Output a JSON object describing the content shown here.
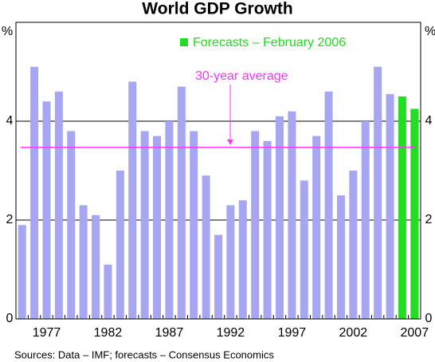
{
  "chart_data": {
    "type": "bar",
    "title": "World GDP Growth",
    "y_unit": "%",
    "categories": [
      null,
      null,
      "1977",
      null,
      null,
      null,
      null,
      "1982",
      null,
      null,
      null,
      null,
      "1987",
      null,
      null,
      null,
      null,
      "1992",
      null,
      null,
      null,
      null,
      "1997",
      null,
      null,
      null,
      null,
      "2002",
      null,
      null,
      null,
      null,
      "2007"
    ],
    "values": [
      1.9,
      5.1,
      4.4,
      4.6,
      3.8,
      2.3,
      2.1,
      1.1,
      3.0,
      4.8,
      3.8,
      3.7,
      4.0,
      4.7,
      3.8,
      2.9,
      1.7,
      2.3,
      2.4,
      3.8,
      3.6,
      4.1,
      4.2,
      2.8,
      3.7,
      4.6,
      2.5,
      3.0,
      4.0,
      5.1,
      4.55,
      4.5,
      4.25
    ],
    "colors": [
      "#a6a6f2",
      "#a6a6f2",
      "#a6a6f2",
      "#a6a6f2",
      "#a6a6f2",
      "#a6a6f2",
      "#a6a6f2",
      "#a6a6f2",
      "#a6a6f2",
      "#a6a6f2",
      "#a6a6f2",
      "#a6a6f2",
      "#a6a6f2",
      "#a6a6f2",
      "#a6a6f2",
      "#a6a6f2",
      "#a6a6f2",
      "#a6a6f2",
      "#a6a6f2",
      "#a6a6f2",
      "#a6a6f2",
      "#a6a6f2",
      "#a6a6f2",
      "#a6a6f2",
      "#a6a6f2",
      "#a6a6f2",
      "#a6a6f2",
      "#a6a6f2",
      "#a6a6f2",
      "#a6a6f2",
      "#a6a6f2",
      "#22dd22",
      "#22dd22"
    ],
    "legend": {
      "label": "Forecasts – February 2006",
      "color": "#22dd22"
    },
    "average": {
      "label": "30-year average",
      "value": 3.47,
      "color": "#ff33ff"
    },
    "ylim": [
      0,
      6
    ],
    "yticks": [
      0,
      2,
      4
    ],
    "grid": true,
    "source": "Sources: Data – IMF; forecasts – Consensus Economics"
  }
}
